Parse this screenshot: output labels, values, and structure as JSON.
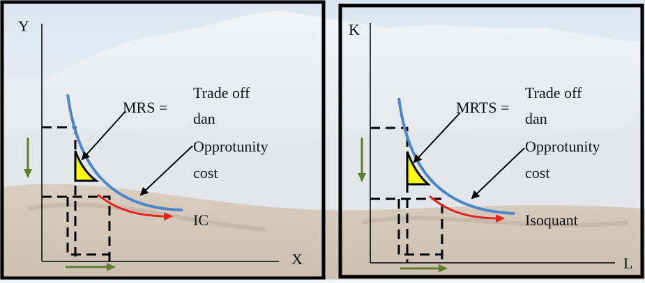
{
  "left_panel": {
    "y_axis_label": "Y",
    "x_axis_label": "X",
    "ratio_label": "MRS =",
    "note_line1": "Trade off",
    "note_line2": "dan",
    "note_line3": "Opprotunity",
    "note_line4": "cost",
    "curve_label": "IC"
  },
  "right_panel": {
    "y_axis_label": "K",
    "x_axis_label": "L",
    "ratio_label": "MRTS =",
    "note_line1": "Trade off",
    "note_line2": "dan",
    "note_line3": "Opprotunity",
    "note_line4": "cost",
    "curve_label": "Isoquant"
  },
  "colors": {
    "curve": "#4a86c8",
    "movement_arrow": "#e8201c",
    "direction_arrows": "#5b7f2d",
    "triangle_fill": "#ffff00",
    "frame": "#000000"
  }
}
